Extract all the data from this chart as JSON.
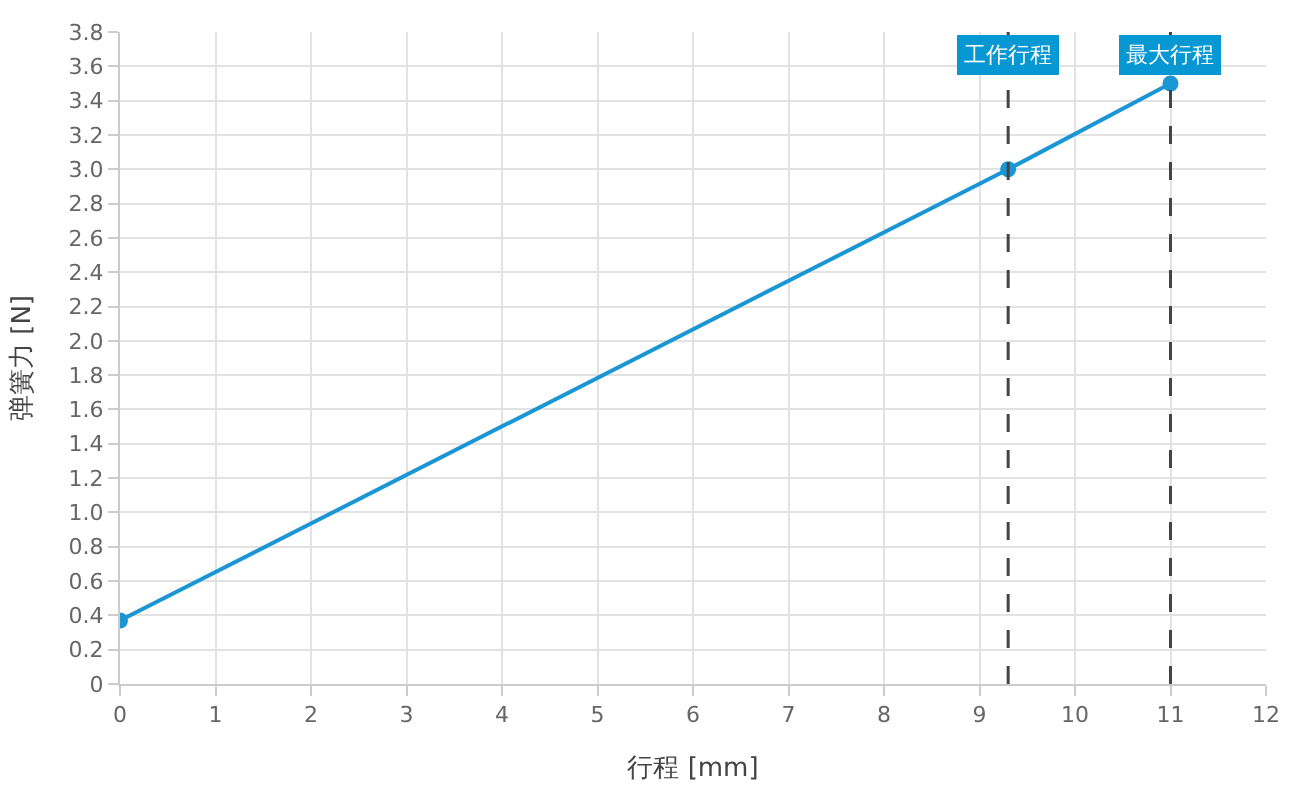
{
  "chart_data": {
    "type": "line",
    "xlabel": "行程 [mm]",
    "ylabel": "弹簧力 [N]",
    "x": [
      0,
      9.3,
      11
    ],
    "series": [
      {
        "color": "#1a96d4",
        "values": [
          0.37,
          3.0,
          3.5
        ]
      }
    ],
    "marker": "circle",
    "line_style": "solid",
    "grid": true,
    "xlim": [
      0,
      12
    ],
    "xticks": [
      0,
      1,
      2,
      3,
      4,
      5,
      6,
      7,
      8,
      9,
      10,
      11,
      12
    ],
    "ylim": [
      0,
      3.8
    ],
    "yticks": [
      0,
      0.2,
      0.4,
      0.6,
      0.8,
      {
        "value": 1,
        "label": "1.0"
      },
      1.2,
      1.4,
      1.6,
      1.8,
      {
        "value": 2,
        "label": "2.0"
      },
      2.2,
      2.4,
      2.6,
      2.8,
      {
        "value": 3,
        "label": "3.0"
      },
      3.2,
      3.4,
      3.6,
      3.8
    ],
    "ref_lines": [
      {
        "axis": "x",
        "value": 9.3,
        "label": "工作行程",
        "color": "#444444",
        "line_style": "dashed"
      },
      {
        "axis": "x",
        "value": 11,
        "label": "最大行程",
        "color": "#444444",
        "line_style": "dashed"
      }
    ]
  }
}
